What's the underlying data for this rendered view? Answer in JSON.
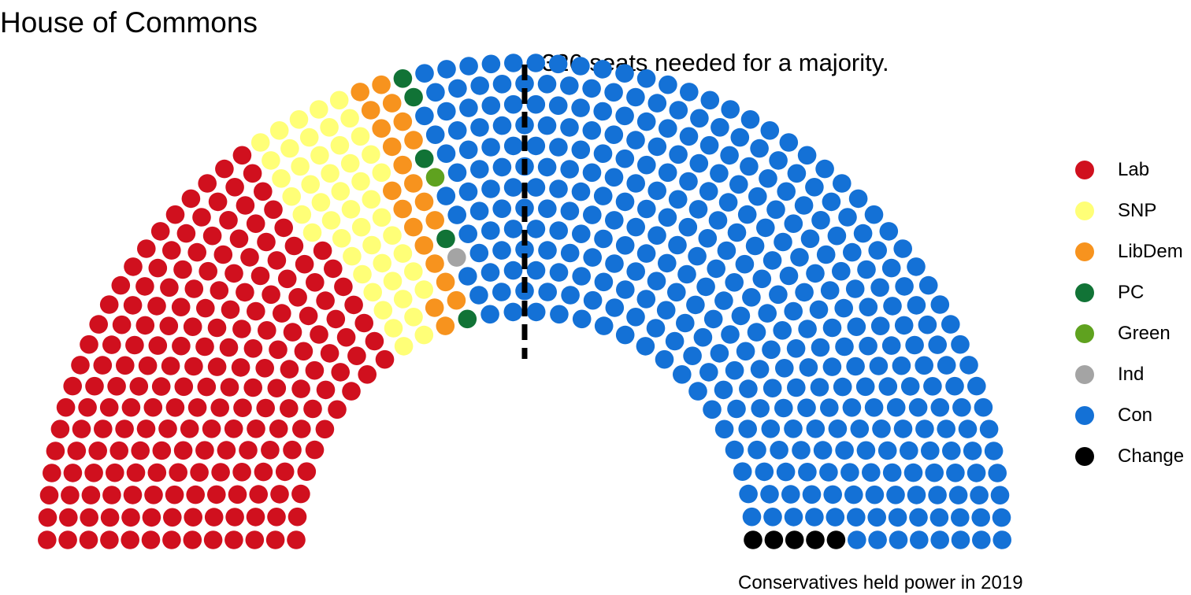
{
  "chart_data": {
    "type": "parliament",
    "title": "House of Commons",
    "annotation": "326 seats needed for a majority.",
    "majority": 326,
    "caption": "Conservatives held power in 2019",
    "total_seats": 650,
    "parties": [
      {
        "name": "Lab",
        "seats": 202,
        "color": "#D0101E"
      },
      {
        "name": "SNP",
        "seats": 48,
        "color": "#FFFF77"
      },
      {
        "name": "LibDem",
        "seats": 21,
        "color": "#F7931E"
      },
      {
        "name": "PC",
        "seats": 5,
        "color": "#117336"
      },
      {
        "name": "Green",
        "seats": 1,
        "color": "#5FA21F"
      },
      {
        "name": "Ind",
        "seats": 1,
        "color": "#A4A4A4"
      },
      {
        "name": "Con",
        "seats": 367,
        "color": "#1471D6"
      },
      {
        "name": "Change",
        "seats": 5,
        "color": "#000000"
      }
    ],
    "legend_position": "right"
  }
}
